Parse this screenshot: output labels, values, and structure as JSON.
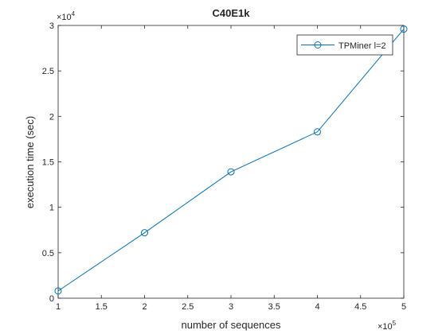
{
  "chart_data": {
    "type": "line",
    "title": "C40E1k",
    "xlabel": "number of sequences",
    "ylabel": "execution time (sec)",
    "x_multiplier": "×10",
    "x_exponent": "5",
    "y_multiplier": "×10",
    "y_exponent": "4",
    "xlim": [
      1,
      5
    ],
    "ylim": [
      0,
      3
    ],
    "xticks": [
      "1",
      "1.5",
      "2",
      "2.5",
      "3",
      "3.5",
      "4",
      "4.5",
      "5"
    ],
    "yticks": [
      "0",
      "0.5",
      "1",
      "1.5",
      "2",
      "2.5",
      "3"
    ],
    "grid": false,
    "legend_position": "top-right",
    "series": [
      {
        "name": "TPMiner l=2",
        "color": "#0072BD",
        "marker": "circle",
        "x": [
          1,
          2,
          3,
          4,
          5
        ],
        "y": [
          0.08,
          0.72,
          1.39,
          1.83,
          2.96
        ]
      }
    ]
  }
}
